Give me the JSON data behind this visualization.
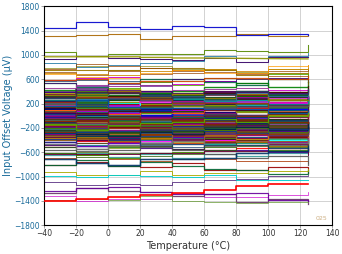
{
  "title": "",
  "xlabel": "Temperature (°C)",
  "ylabel": "Input Offset Voltage (µV)",
  "xlim": [
    -40,
    140
  ],
  "ylim": [
    -1800,
    1800
  ],
  "xticks": [
    -40,
    -20,
    0,
    20,
    40,
    60,
    80,
    100,
    120,
    140
  ],
  "yticks": [
    -1800,
    -1400,
    -1000,
    -600,
    -200,
    200,
    600,
    1000,
    1400,
    1800
  ],
  "temp_points": [
    -40,
    -20,
    0,
    20,
    40,
    60,
    80,
    100,
    125
  ],
  "background_color": "#ffffff",
  "grid_color": "#c0c0c0",
  "watermark": "025",
  "n_lines": 200,
  "linewidth": 1.2
}
